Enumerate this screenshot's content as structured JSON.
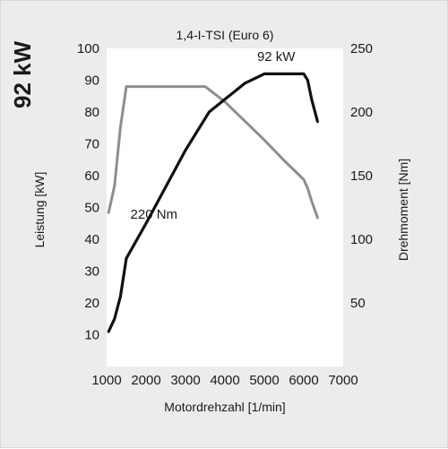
{
  "headline": "92 kW",
  "chart_data": {
    "type": "line",
    "title": "1,4-I-TSI (Euro 6)",
    "xlabel": "Motordrehzahl [1/min]",
    "ylabel_left": "Leistung [kW]",
    "ylabel_right": "Drehmoment [Nm]",
    "xlim": [
      1000,
      7000
    ],
    "xticks": [
      1000,
      2000,
      3000,
      4000,
      5000,
      6000,
      7000
    ],
    "ylim_left": [
      0,
      100
    ],
    "yticks_left": [
      10,
      20,
      30,
      40,
      50,
      60,
      70,
      80,
      90,
      100
    ],
    "ylim_right": [
      0,
      250
    ],
    "yticks_right": [
      50,
      100,
      150,
      200,
      250
    ],
    "grid": false,
    "series": [
      {
        "name": "Leistung",
        "axis": "left",
        "color": "#111111",
        "x": [
          1050,
          1200,
          1350,
          1500,
          2000,
          3000,
          3600,
          4000,
          4500,
          5000,
          5500,
          6000,
          6100,
          6200,
          6350
        ],
        "y": [
          11,
          15,
          22,
          34,
          45,
          68,
          80,
          84,
          89,
          92,
          92,
          92,
          90,
          84,
          77
        ]
      },
      {
        "name": "Drehmoment",
        "axis": "right",
        "color": "#8e8e8e",
        "x": [
          1050,
          1200,
          1350,
          1500,
          2000,
          3000,
          3500,
          4000,
          5000,
          5500,
          6000,
          6100,
          6200,
          6350
        ],
        "y": [
          121,
          142,
          188,
          220,
          220,
          220,
          220,
          208,
          178,
          162,
          147,
          140,
          130,
          117
        ]
      }
    ],
    "annotations": [
      {
        "text": "92 kW",
        "x": 5300,
        "y_left": 96
      },
      {
        "text": "220 Nm",
        "x": 2200,
        "y_left": 46.5
      }
    ]
  }
}
